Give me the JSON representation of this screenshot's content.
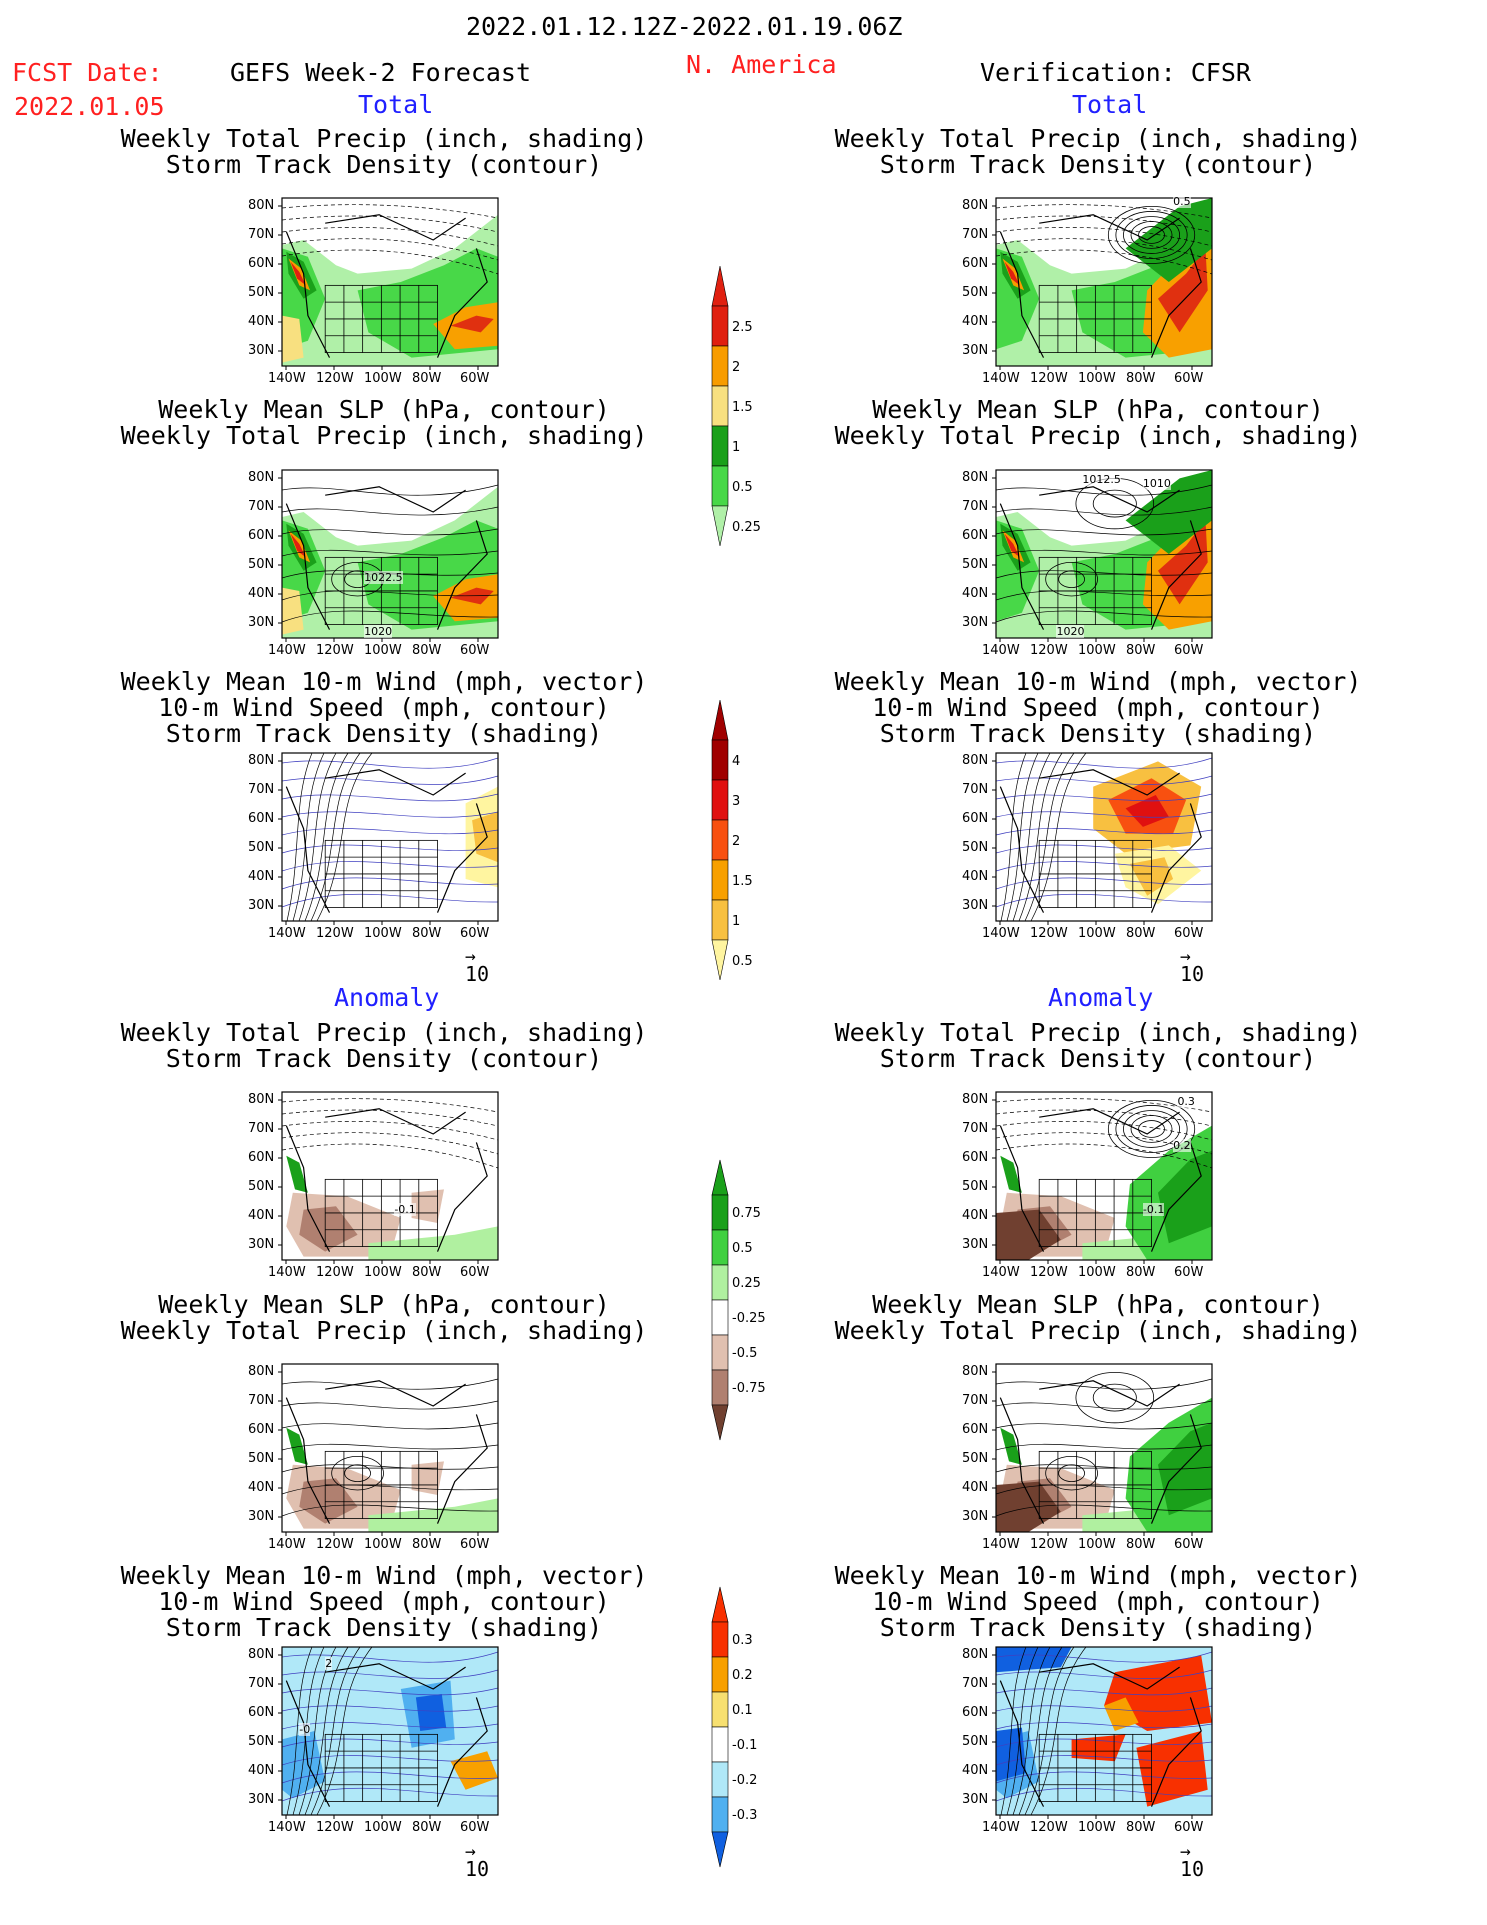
{
  "header": {
    "date_range": "2022.01.12.12Z-2022.01.19.06Z",
    "fcst_label": "FCST Date:",
    "fcst_date": "2022.01.05",
    "left_title": "GEFS Week-2 Forecast",
    "region": "N. America",
    "right_title": "Verification: CFSR"
  },
  "sections": {
    "total": "Total",
    "anomaly": "Anomaly"
  },
  "panel_titles": {
    "precip_storm": [
      "Weekly Total Precip (inch, shading)",
      "Storm Track Density (contour)"
    ],
    "slp_precip": [
      "Weekly Mean SLP (hPa, contour)",
      "Weekly Total Precip (inch, shading)"
    ],
    "wind_storm": [
      "Weekly Mean 10-m Wind (mph, vector)",
      "10-m Wind Speed (mph, contour)",
      "Storm Track Density (shading)"
    ]
  },
  "axes": {
    "lat_ticks": [
      "80N",
      "70N",
      "60N",
      "50N",
      "40N",
      "30N"
    ],
    "lon_ticks": [
      "140W",
      "120W",
      "100W",
      "80W",
      "60W"
    ]
  },
  "contour_labels": {
    "total_slp_gefs": [
      "1022.5",
      "1020"
    ],
    "total_slp_cfsr": [
      "1012.5",
      "1010",
      "1020"
    ],
    "total_storm_cfsr": [
      "0.5"
    ],
    "anom_storm_gefs": [
      "-0.1"
    ],
    "anom_storm_cfsr": [
      "0.3",
      "0.2",
      "-0.1"
    ],
    "anom_wind_gefs": [
      "2",
      "-0"
    ]
  },
  "vector_reference": "10",
  "colorbars": {
    "total_precip": {
      "labels": [
        "2.5",
        "2",
        "1.5",
        "1",
        "0.5",
        "0.25"
      ],
      "colors": [
        "#e02010",
        "#f89c00",
        "#f8e080",
        "#1aa01a",
        "#48d848",
        "#b0f0a8"
      ]
    },
    "total_storm": {
      "labels": [
        "4",
        "3",
        "2",
        "1.5",
        "1",
        "0.5"
      ],
      "colors": [
        "#a00000",
        "#e01010",
        "#f85010",
        "#f8a000",
        "#f8c040",
        "#fff5a0"
      ]
    },
    "anom_precip": {
      "labels": [
        "0.75",
        "0.5",
        "0.25",
        "-0.25",
        "-0.5",
        "-0.75"
      ],
      "colors": [
        "#1aa01a",
        "#40d040",
        "#b0f0a0",
        "#ffffff",
        "#e0c0b0",
        "#b08070",
        "#704030"
      ]
    },
    "anom_storm": {
      "labels": [
        "0.3",
        "0.2",
        "0.1",
        "-0.1",
        "-0.2",
        "-0.3"
      ],
      "colors": [
        "#f83000",
        "#f8a000",
        "#f8e070",
        "#ffffff",
        "#b0e8f8",
        "#50b0f0",
        "#1060e0"
      ]
    }
  },
  "colors": {
    "header_red": "#ff2020",
    "section_blue": "#2020ff"
  }
}
